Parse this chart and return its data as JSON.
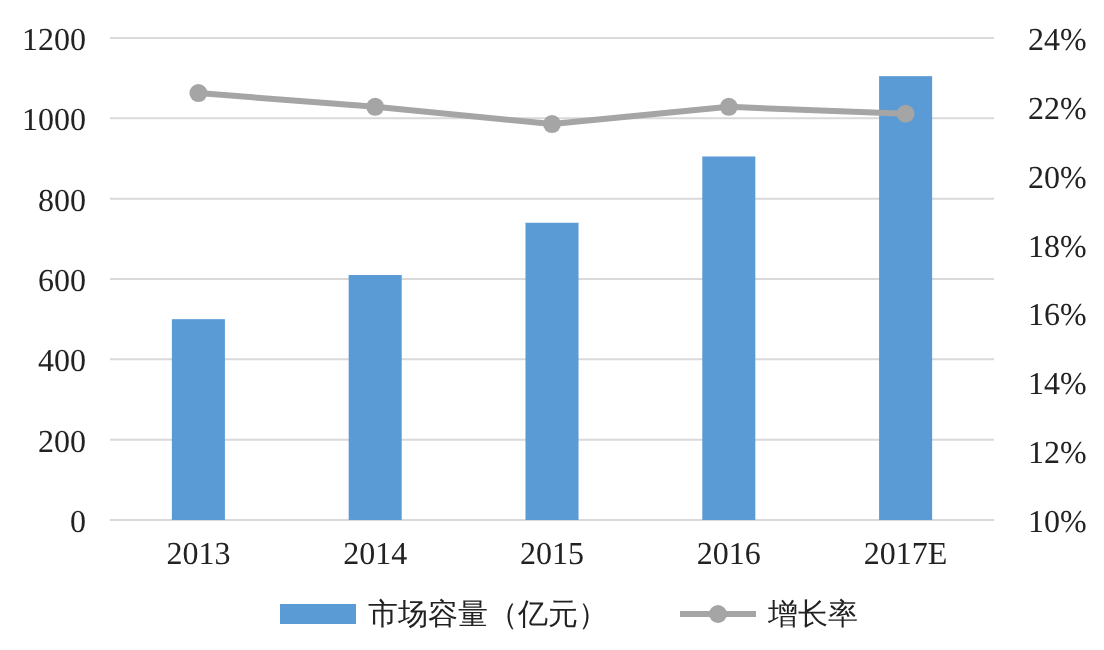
{
  "chart_data": {
    "type": "bar",
    "categories": [
      "2013",
      "2014",
      "2015",
      "2016",
      "2017E"
    ],
    "series": [
      {
        "name": "市场容量（亿元）",
        "color": "#5b9bd5",
        "values": [
          500,
          610,
          740,
          905,
          1105
        ]
      },
      {
        "name": "增长率",
        "type": "line",
        "axis": "y2",
        "color": "#a5a5a5",
        "marker": "circle",
        "values": [
          22.4,
          22.0,
          21.5,
          22.0,
          21.8
        ]
      }
    ],
    "ylim": [
      0,
      1200
    ],
    "yticks": [
      0,
      200,
      400,
      600,
      800,
      1000,
      1200
    ],
    "y2lim": [
      10,
      24
    ],
    "y2ticks": [
      {
        "value": 10,
        "label": "10%"
      },
      {
        "value": 12,
        "label": "12%"
      },
      {
        "value": 14,
        "label": "14%"
      },
      {
        "value": 16,
        "label": "16%"
      },
      {
        "value": 18,
        "label": "18%"
      },
      {
        "value": 20,
        "label": "20%"
      },
      {
        "value": 22,
        "label": "22%"
      },
      {
        "value": 24,
        "label": "24%"
      }
    ],
    "grid": "y",
    "legend": "bottom"
  }
}
